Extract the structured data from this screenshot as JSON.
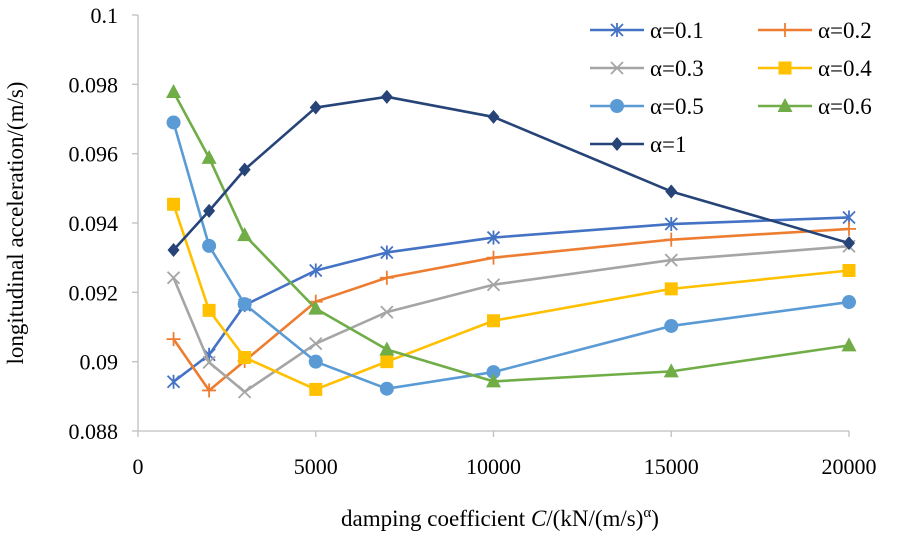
{
  "chart_data": {
    "type": "line",
    "title": "",
    "xlabel_parts": {
      "pre": "damping coefficient ",
      "italic": "C",
      "post": "/(kN/(m/s)",
      "sup": "α",
      "close": ")"
    },
    "ylabel": "longitudinal acceleration/(m/s)",
    "xlim": [
      0,
      20000
    ],
    "ylim": [
      0.088,
      0.1
    ],
    "xticks": [
      0,
      5000,
      10000,
      15000,
      20000
    ],
    "yticks": [
      "0.088",
      "0.09",
      "0.092",
      "0.094",
      "0.096",
      "0.098",
      "0.1"
    ],
    "grid": false,
    "legend_position": "top-right",
    "x": [
      1000,
      2000,
      3000,
      5000,
      7000,
      10000,
      15000,
      20000
    ],
    "series": [
      {
        "name": "α=0.1",
        "color": "#4472C4",
        "marker": "asterisk",
        "values": [
          0.08942,
          0.0902,
          0.09163,
          0.09263,
          0.09315,
          0.09358,
          0.09397,
          0.09416
        ]
      },
      {
        "name": "α=0.2",
        "color": "#ED7D31",
        "marker": "plus",
        "values": [
          0.09065,
          0.08917,
          0.09002,
          0.09173,
          0.09242,
          0.093,
          0.09352,
          0.09383
        ]
      },
      {
        "name": "α=0.3",
        "color": "#A5A5A5",
        "marker": "x",
        "values": [
          0.09242,
          0.08998,
          0.08913,
          0.09052,
          0.09143,
          0.09222,
          0.09293,
          0.09333
        ]
      },
      {
        "name": "α=0.4",
        "color": "#FFC000",
        "marker": "square",
        "values": [
          0.09454,
          0.09148,
          0.09012,
          0.0892,
          0.09,
          0.09118,
          0.0921,
          0.09263
        ]
      },
      {
        "name": "α=0.5",
        "color": "#5B9BD5",
        "marker": "circle",
        "values": [
          0.0969,
          0.09334,
          0.09166,
          0.09,
          0.08922,
          0.0897,
          0.09103,
          0.09172
        ]
      },
      {
        "name": "α=0.6",
        "color": "#70AD47",
        "marker": "triangle",
        "values": [
          0.09778,
          0.09588,
          0.09365,
          0.09153,
          0.09035,
          0.08943,
          0.08972,
          0.09047
        ]
      },
      {
        "name": "α=1",
        "color": "#264478",
        "marker": "diamond",
        "values": [
          0.09322,
          0.09435,
          0.09554,
          0.09733,
          0.09764,
          0.09706,
          0.09491,
          0.09342
        ]
      }
    ]
  }
}
